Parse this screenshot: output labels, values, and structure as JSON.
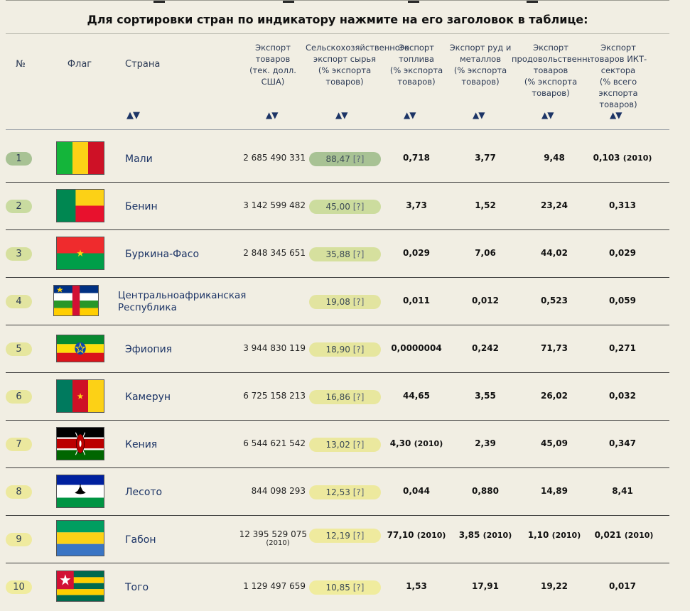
{
  "title": "Для сортировки стран по индикатору нажмите на его заголовок в таблице:",
  "colors": {
    "background": "#f1eee3",
    "rank_green": "#a8c294",
    "rank_yellow": "#ecea9c",
    "agri_green": "#a8c294",
    "agri_mid": "#ccdc9e",
    "agri_yellow": "#f0ec9e"
  },
  "headers": {
    "num": "№",
    "flag": "Флаг",
    "country": "Страна",
    "exports": [
      "Экспорт",
      "товаров",
      "(тек. долл.",
      "США)"
    ],
    "agri": [
      "Сельскохозяйственного",
      "экспорт сырья",
      "(% экспорта",
      "товаров)"
    ],
    "fuel": [
      "Экспорт",
      "топлива",
      "(% экспорта",
      "товаров)"
    ],
    "ores": [
      "Экспорт руд и",
      "металлов",
      "(% экспорта",
      "товаров)"
    ],
    "food": [
      "Экспорт",
      "продовольственных",
      "товаров",
      "(% экспорта",
      "товаров)"
    ],
    "ict": [
      "Экспорт",
      "товаров ИКТ-",
      "сектора",
      "(% всего",
      "экспорта",
      "товаров)"
    ],
    "sort_icon": "▲▼"
  },
  "rows": [
    {
      "rank": "1",
      "flag": "mali-flag",
      "country": "Мали",
      "exports": "2 685 490 331",
      "agri": "88,47",
      "agri_note": "[?]",
      "fuel": "0,718",
      "ores": "3,77",
      "food": "9,48",
      "ict": "0,103",
      "ict_year": "(2010)"
    },
    {
      "rank": "2",
      "flag": "benin-flag",
      "country": "Бенин",
      "exports": "3 142 599 482",
      "agri": "45,00",
      "agri_note": "[?]",
      "fuel": "3,73",
      "ores": "1,52",
      "food": "23,24",
      "ict": "0,313"
    },
    {
      "rank": "3",
      "flag": "burkina-faso-flag",
      "country": "Буркина-Фасо",
      "exports": "2 848 345 651",
      "agri": "35,88",
      "agri_note": "[?]",
      "fuel": "0,029",
      "ores": "7,06",
      "food": "44,02",
      "ict": "0,029"
    },
    {
      "rank": "4",
      "flag": "car-flag",
      "country": [
        "Центральноафриканская",
        "Республика"
      ],
      "exports": "",
      "agri": "19,08",
      "agri_note": "[?]",
      "fuel": "0,011",
      "ores": "0,012",
      "food": "0,523",
      "ict": "0,059"
    },
    {
      "rank": "5",
      "flag": "ethiopia-flag",
      "country": "Эфиопия",
      "exports": "3 944 830 119",
      "agri": "18,90",
      "agri_note": "[?]",
      "fuel": "0,0000004",
      "ores": "0,242",
      "food": "71,73",
      "ict": "0,271"
    },
    {
      "rank": "6",
      "flag": "cameroon-flag",
      "country": "Камерун",
      "exports": "6 725 158 213",
      "agri": "16,86",
      "agri_note": "[?]",
      "fuel": "44,65",
      "ores": "3,55",
      "food": "26,02",
      "ict": "0,032"
    },
    {
      "rank": "7",
      "flag": "kenya-flag",
      "country": "Кения",
      "exports": "6 544 621 542",
      "agri": "13,02",
      "agri_note": "[?]",
      "fuel": "4,30",
      "fuel_year": "(2010)",
      "ores": "2,39",
      "food": "45,09",
      "ict": "0,347"
    },
    {
      "rank": "8",
      "flag": "lesotho-flag",
      "country": "Лесото",
      "exports": "844 098 293",
      "agri": "12,53",
      "agri_note": "[?]",
      "fuel": "0,044",
      "ores": "0,880",
      "food": "14,89",
      "ict": "8,41"
    },
    {
      "rank": "9",
      "flag": "gabon-flag",
      "country": "Габон",
      "exports": "12 395 529 075",
      "exports_year": "(2010)",
      "agri": "12,19",
      "agri_note": "[?]",
      "fuel": "77,10",
      "fuel_year": "(2010)",
      "ores": "3,85",
      "ores_year": "(2010)",
      "food": "1,10",
      "food_year": "(2010)",
      "ict": "0,021",
      "ict_year": "(2010)"
    },
    {
      "rank": "10",
      "flag": "togo-flag",
      "country": "Того",
      "exports": "1 129 497 659",
      "agri": "10,85",
      "agri_note": "[?]",
      "fuel": "1,53",
      "ores": "17,91",
      "food": "19,22",
      "ict": "0,017"
    }
  ]
}
